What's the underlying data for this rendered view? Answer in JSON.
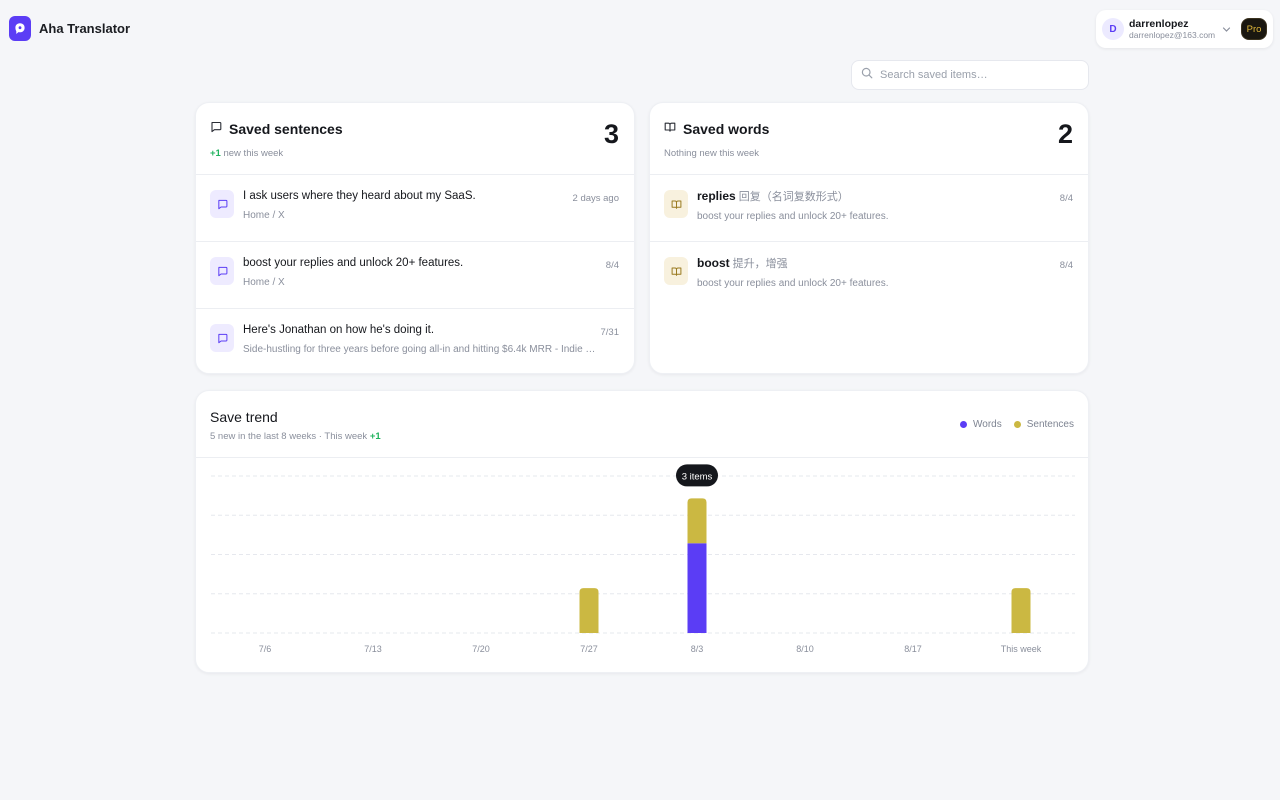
{
  "app": {
    "name": "Aha Translator"
  },
  "account": {
    "initial": "D",
    "username": "darrenlopez",
    "email": "darrenlopez@163.com",
    "plan": "Pro"
  },
  "search": {
    "placeholder": "Search saved items…"
  },
  "sentences": {
    "title": "Saved sentences",
    "count": "3",
    "delta": "+1",
    "delta_text": "new this week",
    "items": [
      {
        "text": "I ask users where they heard about my SaaS.",
        "source": "Home / X",
        "date": "2 days ago",
        "icon": "chat-bubble-icon"
      },
      {
        "text": "boost your replies and unlock 20+ features.",
        "source": "Home / X",
        "date": "8/4",
        "icon": "chat-bubble-icon"
      },
      {
        "text": "Here's Jonathan on how he's doing it.",
        "source": "Side-hustling for three years before going all-in and hitting $6.4k MRR - Indie Hac...",
        "date": "7/31",
        "icon": "chat-bubble-icon"
      }
    ]
  },
  "words": {
    "title": "Saved words",
    "count": "2",
    "subtitle": "Nothing new this week",
    "items": [
      {
        "word": "replies",
        "translation": "回复（名词复数形式）",
        "example": "boost your replies and unlock 20+ features.",
        "date": "8/4",
        "icon": "book-icon"
      },
      {
        "word": "boost",
        "translation": "提升，增强",
        "example": "boost your replies and unlock 20+ features.",
        "date": "8/4",
        "icon": "book-icon"
      }
    ]
  },
  "trend": {
    "title": "Save trend",
    "subtitle": "5 new in the last 8 weeks · This week",
    "delta": "+1",
    "legend": {
      "words": "Words",
      "sentences": "Sentences"
    },
    "tooltip": "3 items"
  },
  "colors": {
    "accent": "#5b3df5",
    "sentences": "#cbb842",
    "words": "#5b3df5",
    "positive": "#22b35e"
  },
  "chart_data": {
    "type": "bar",
    "stacked": true,
    "categories": [
      "7/6",
      "7/13",
      "7/20",
      "7/27",
      "8/3",
      "8/10",
      "8/17",
      "This week"
    ],
    "series": [
      {
        "name": "Words",
        "values": [
          0,
          0,
          0,
          0,
          2,
          0,
          0,
          0
        ]
      },
      {
        "name": "Sentences",
        "values": [
          0,
          0,
          0,
          1,
          1,
          0,
          0,
          1
        ]
      }
    ],
    "ylim": [
      0,
      3.5
    ],
    "grid": true,
    "legend": "top-right",
    "highlight": {
      "category": "8/3",
      "label": "3 items"
    }
  }
}
